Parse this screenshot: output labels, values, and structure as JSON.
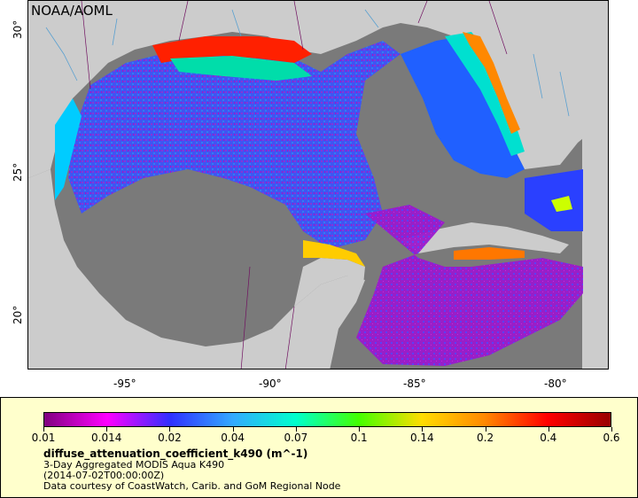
{
  "map": {
    "attribution": "NOAA/AOML",
    "x_axis_ticks": [
      "-95°",
      "-90°",
      "-85°",
      "-80°"
    ],
    "y_axis_ticks": [
      "30°",
      "25°",
      "20°"
    ]
  },
  "legend": {
    "colorbar_labels": [
      "0.01",
      "0.014",
      "0.02",
      "0.04",
      "0.07",
      "0.1",
      "0.14",
      "0.2",
      "0.4",
      "0.6"
    ],
    "variable": "diffuse_attenuation_coefficient_k490 (m^-1)",
    "line1": "3-Day Aggregated MODIS Aqua K490",
    "line2": "(2014-07-02T00:00:00Z)",
    "line3": "Data courtesy of CoastWatch, Carib. and GoM Regional Node"
  },
  "colors": {
    "land": "#cccccc",
    "no_data": "#7a7a7a",
    "legend_bg": "#ffffcc",
    "colorbar_gradient": [
      "#800080",
      "#ff00ff",
      "#3030ff",
      "#33aaff",
      "#00ffcc",
      "#44ff00",
      "#ffdd00",
      "#ff8800",
      "#ff0000",
      "#990000"
    ]
  }
}
